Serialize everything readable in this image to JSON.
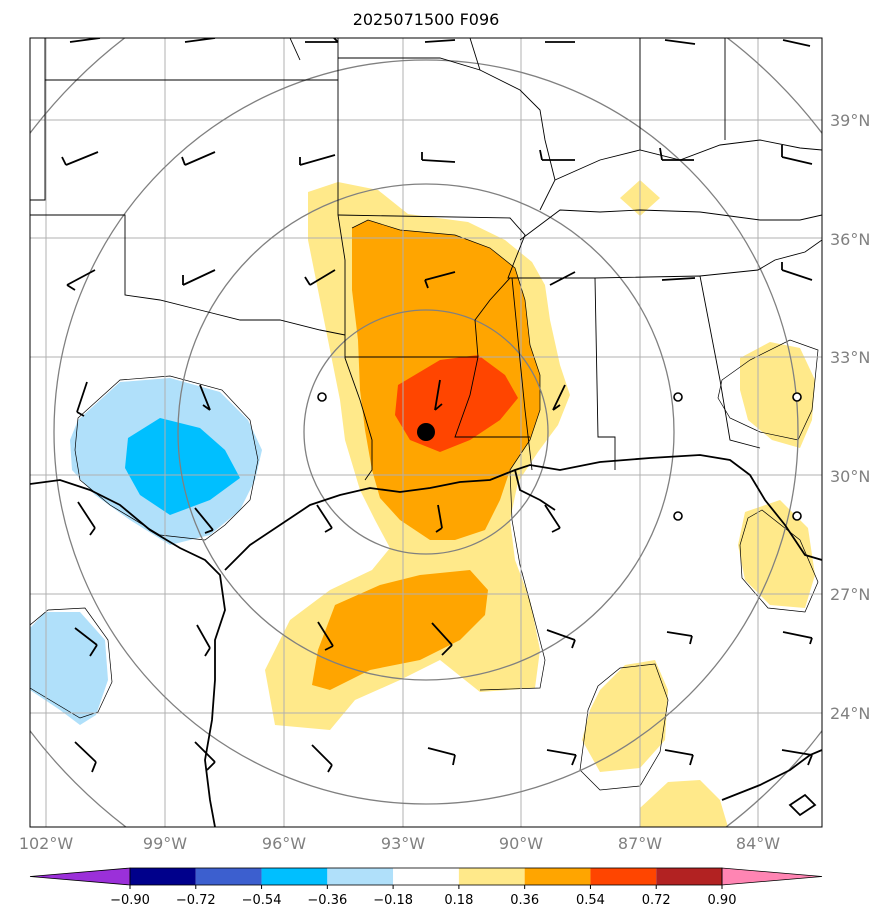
{
  "title": "2025071500 F096",
  "map": {
    "lat_labels": [
      "39°N",
      "36°N",
      "33°N",
      "30°N",
      "27°N",
      "24°N"
    ],
    "lon_labels": [
      "102°W",
      "99°W",
      "96°W",
      "93°W",
      "90°W",
      "87°W",
      "84°W"
    ],
    "gridlines": true,
    "range_rings": 4,
    "center_marker": "filled-black-circle"
  },
  "colorbar": {
    "tick_labels": [
      "−0.90",
      "−0.72",
      "−0.54",
      "−0.36",
      "−0.18",
      "0.18",
      "0.36",
      "0.54",
      "0.72",
      "0.90"
    ],
    "colors": [
      "#9b30d9",
      "#00008b",
      "#3c5fcf",
      "#00bfff",
      "#b0e0fa",
      "#ffffff",
      "#ffe98a",
      "#ffa500",
      "#ff4500",
      "#b22222",
      "#ff85b3"
    ],
    "extend": "both"
  },
  "fill_colors": {
    "light_yellow": "#ffe98a",
    "orange": "#ffa500",
    "orange_red": "#ff4500",
    "light_blue": "#b0e0fa",
    "deep_sky_blue": "#00bfff"
  }
}
